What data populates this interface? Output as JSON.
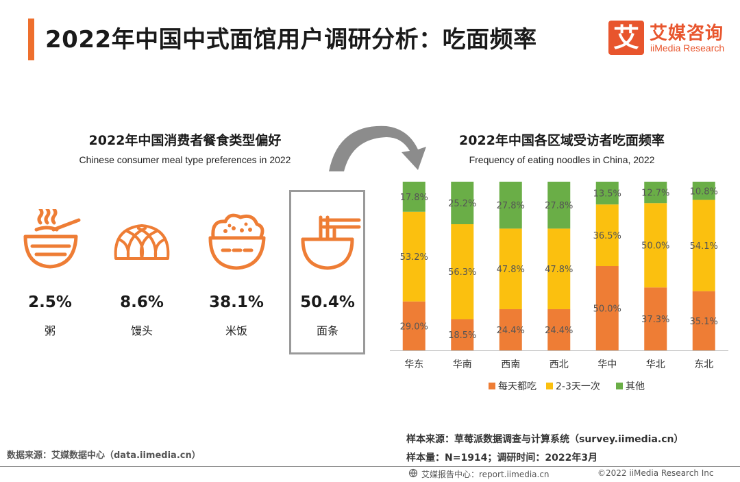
{
  "header": {
    "title": "2022年中国中式面馆用户调研分析：吃面频率",
    "accent_color": "#ee6f2d"
  },
  "logo": {
    "mark": "艾",
    "name_cn": "艾媒咨询",
    "name_en": "iiMedia Research",
    "color": "#e8552d"
  },
  "left_panel": {
    "title": "2022年中国消费者餐食类型偏好",
    "subtitle": "Chinese consumer meal type preferences in 2022",
    "items": [
      {
        "icon": "porridge-bowl-icon",
        "percent": "2.5%",
        "label": "粥"
      },
      {
        "icon": "steamed-bun-icon",
        "percent": "8.6%",
        "label": "馒头"
      },
      {
        "icon": "rice-bowl-icon",
        "percent": "38.1%",
        "label": "米饭"
      },
      {
        "icon": "noodle-bowl-icon",
        "percent": "50.4%",
        "label": "面条"
      }
    ],
    "icon_color": "#ee7d35"
  },
  "arrow": {
    "icon": "curved-arrow-icon",
    "color": "#8c8c8c"
  },
  "chart_data": {
    "type": "bar",
    "stacked": true,
    "percent": true,
    "title": "2022年中国各区域受访者吃面频率",
    "subtitle": "Frequency of eating noodles in China, 2022",
    "categories": [
      "华东",
      "华南",
      "西南",
      "西北",
      "华中",
      "华北",
      "东北"
    ],
    "series": [
      {
        "name": "每天都吃",
        "color": "#ee7d35",
        "values": [
          29.0,
          18.5,
          24.4,
          24.4,
          50.0,
          37.3,
          35.1
        ]
      },
      {
        "name": "2-3天一次",
        "color": "#fbc00f",
        "values": [
          53.2,
          56.3,
          47.8,
          47.8,
          36.5,
          50.0,
          54.1
        ]
      },
      {
        "name": "其他",
        "color": "#6aae47",
        "values": [
          17.8,
          25.2,
          27.8,
          27.8,
          13.5,
          12.7,
          10.8
        ]
      }
    ],
    "ylim": [
      0,
      100
    ],
    "legend": "bottom",
    "grid": false
  },
  "footer": {
    "data_source": "数据来源：艾媒数据中心（data.iimedia.cn）",
    "sample_source": "样本来源：草莓派数据调查与计算系统（survey.iimedia.cn）",
    "sample_size": "样本量：N=1914；调研时间：2022年3月",
    "report_center": "艾媒报告中心：report.iimedia.cn",
    "copyright": "©2022 iiMedia Research Inc"
  }
}
